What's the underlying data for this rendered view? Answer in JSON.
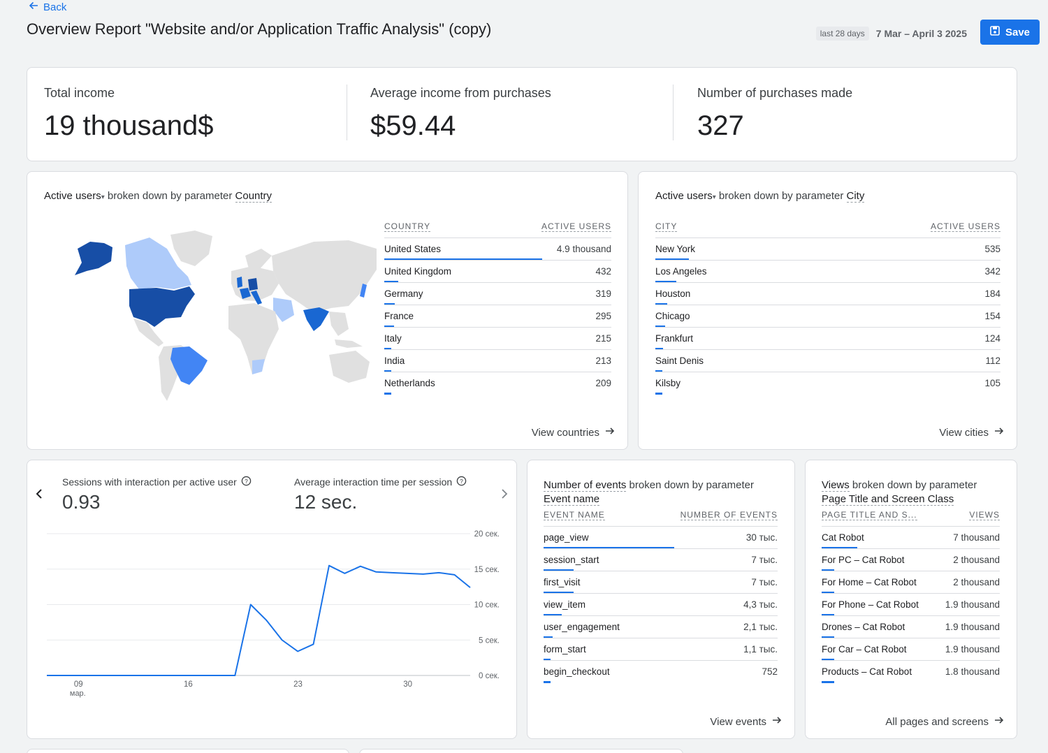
{
  "header": {
    "back_label": "Back",
    "title": "Overview Report \"Website and/or Application Traffic Analysis\" (copy)",
    "range_label": "last 28 days",
    "range_dates": "7 Mar – April 3 2025",
    "save_label": "Save"
  },
  "kpis": [
    {
      "label": "Total income",
      "value": "19 thousand$"
    },
    {
      "label": "Average income from purchases",
      "value": "$59.44"
    },
    {
      "label": "Number of purchases made",
      "value": "327"
    }
  ],
  "country_card": {
    "metric": "Active users",
    "middle": " broken down by parameter ",
    "dimension": "Country",
    "col1": "COUNTRY",
    "col2": "ACTIVE USERS",
    "rows": [
      {
        "name": "United States",
        "value": "4.9 thousand",
        "frac": 1.0
      },
      {
        "name": "United Kingdom",
        "value": "432",
        "frac": 0.088
      },
      {
        "name": "Germany",
        "value": "319",
        "frac": 0.065
      },
      {
        "name": "France",
        "value": "295",
        "frac": 0.06
      },
      {
        "name": "Italy",
        "value": "215",
        "frac": 0.044
      },
      {
        "name": "India",
        "value": "213",
        "frac": 0.043
      },
      {
        "name": "Netherlands",
        "value": "209",
        "frac": 0.043
      }
    ],
    "link": "View countries"
  },
  "city_card": {
    "metric": "Active users",
    "middle": " broken down by parameter ",
    "dimension": "City",
    "col1": "CITY",
    "col2": "ACTIVE USERS",
    "rows": [
      {
        "name": "New York",
        "value": "535",
        "frac": 0.16
      },
      {
        "name": "Los Angeles",
        "value": "342",
        "frac": 0.1
      },
      {
        "name": "Houston",
        "value": "184",
        "frac": 0.055
      },
      {
        "name": "Chicago",
        "value": "154",
        "frac": 0.046
      },
      {
        "name": "Frankfurt",
        "value": "124",
        "frac": 0.037
      },
      {
        "name": "Saint Denis",
        "value": "112",
        "frac": 0.034
      },
      {
        "name": "Kilsby",
        "value": "105",
        "frac": 0.032
      }
    ],
    "link": "View cities"
  },
  "engagement_card": {
    "metric1_label": "Sessions with interaction per active user",
    "metric1_value": "0.93",
    "metric2_label": "Average interaction time per session",
    "metric2_value": "12 sec.",
    "help_icon": "help-circle-icon",
    "prev_icon": "chevron-left-icon",
    "next_icon": "chevron-right-icon"
  },
  "chart_data": {
    "type": "line",
    "title": "",
    "xlabel": "",
    "ylabel": "",
    "x_tick_labels": [
      "09",
      "16",
      "23",
      "30"
    ],
    "x_tick_sublabel": "мар.",
    "y_tick_labels": [
      "0 сек.",
      "5 сек.",
      "10 сек.",
      "15 сек.",
      "20 сек."
    ],
    "ylim": [
      0,
      20
    ],
    "series": [
      {
        "x": [
          "2025-03-07",
          "2025-03-08",
          "2025-03-09",
          "2025-03-10",
          "2025-03-11",
          "2025-03-12",
          "2025-03-13",
          "2025-03-14",
          "2025-03-15",
          "2025-03-16",
          "2025-03-17",
          "2025-03-18",
          "2025-03-19",
          "2025-03-20",
          "2025-03-21",
          "2025-03-22",
          "2025-03-23",
          "2025-03-24",
          "2025-03-25",
          "2025-03-26",
          "2025-03-27",
          "2025-03-28",
          "2025-03-29",
          "2025-03-30",
          "2025-03-31",
          "2025-04-01",
          "2025-04-02",
          "2025-04-03"
        ],
        "values": [
          0,
          0,
          0,
          0,
          0,
          0,
          0,
          0,
          0,
          0,
          0,
          0,
          0,
          10,
          7.8,
          5,
          3.4,
          4.4,
          15.5,
          14.4,
          15.4,
          14.6,
          14.5,
          14.4,
          14.3,
          14.5,
          14.2,
          12.4
        ]
      }
    ],
    "color": "#1a73e8",
    "grid": true
  },
  "events_card": {
    "metric": "Number of events",
    "middle": " broken down by parameter ",
    "dimension": "Event name",
    "col1": "EVENT NAME",
    "col2": "NUMBER OF EVENTS",
    "rows": [
      {
        "name": "page_view",
        "value": "30 тыс.",
        "frac": 1.0
      },
      {
        "name": "session_start",
        "value": "7 тыс.",
        "frac": 0.23
      },
      {
        "name": "first_visit",
        "value": "7 тыс.",
        "frac": 0.23
      },
      {
        "name": "view_item",
        "value": "4,3 тыс.",
        "frac": 0.14
      },
      {
        "name": "user_engagement",
        "value": "2,1 тыс.",
        "frac": 0.07
      },
      {
        "name": "form_start",
        "value": "1,1 тыс.",
        "frac": 0.036
      },
      {
        "name": "begin_checkout",
        "value": "752",
        "frac": 0.025
      }
    ],
    "link": "View events"
  },
  "views_card": {
    "metric": "Views",
    "middle": " broken down by parameter ",
    "dimension": "Page Title and Screen Class",
    "col1": "PAGE TITLE AND S...",
    "col2": "VIEWS",
    "rows": [
      {
        "name": "Cat Robot",
        "value": "7 thousand",
        "frac": 0.17
      },
      {
        "name": "For PC – Cat Robot",
        "value": "2 thousand",
        "frac": 0.06
      },
      {
        "name": "For Home – Cat Robot",
        "value": "2 thousand",
        "frac": 0.06
      },
      {
        "name": "For Phone – Cat Robot",
        "value": "1.9 thousand",
        "frac": 0.06
      },
      {
        "name": "Drones – Cat Robot",
        "value": "1.9 thousand",
        "frac": 0.06
      },
      {
        "name": "For Car – Cat Robot",
        "value": "1.9 thousand",
        "frac": 0.06
      },
      {
        "name": "Products – Cat Robot",
        "value": "1.8 thousand",
        "frac": 0.06
      }
    ],
    "link": "All pages and screens"
  },
  "map": {
    "colors": {
      "top": "#174ea6",
      "high": "#1967d2",
      "mid": "#4285f4",
      "low": "#aecbfa",
      "none": "#e0e0e0"
    }
  }
}
